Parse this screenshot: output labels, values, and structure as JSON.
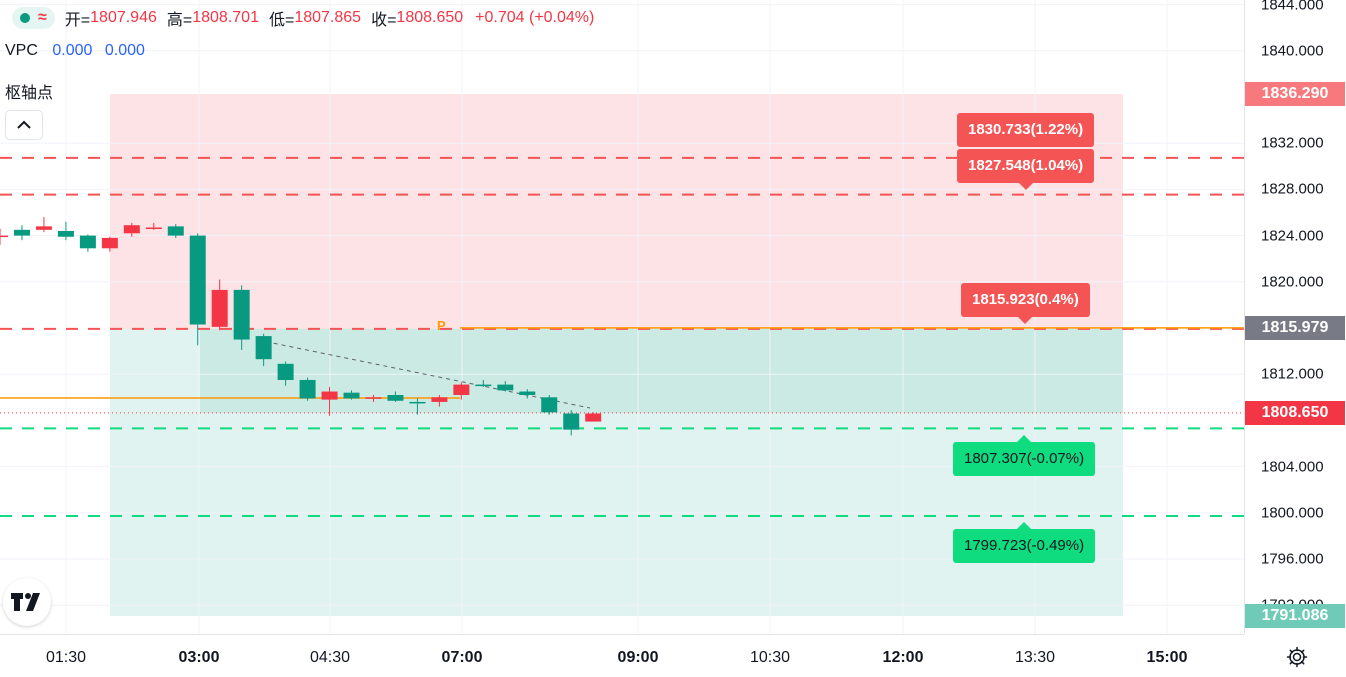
{
  "legend": {
    "open_label": "开=",
    "open_value": "1807.946",
    "high_label": "高=",
    "high_value": "1808.701",
    "low_label": "低=",
    "low_value": "1807.865",
    "close_label": "收=",
    "close_value": "1808.650",
    "change": "+0.704 (+0.04%)",
    "wave_icon": "≈"
  },
  "indicators": {
    "vpc_name": "VPC",
    "vpc_value_1": "0.000",
    "vpc_value_2": "0.000",
    "pivot_name": "枢轴点"
  },
  "price_axis": {
    "ticks": [
      "1844.000",
      "1840.000",
      "1832.000",
      "1828.000",
      "1824.000",
      "1820.000",
      "1812.000",
      "1804.000",
      "1800.000",
      "1796.000",
      "1792.000"
    ],
    "badge_top": {
      "text": "1836.290",
      "color": "#f7797d"
    },
    "badge_pivot": {
      "text": "1815.979",
      "color": "#787b86"
    },
    "badge_last": {
      "text": "1808.650",
      "color": "#f23645"
    },
    "badge_bottom": {
      "text": "1791.086",
      "color": "#6fcab7"
    }
  },
  "time_axis": {
    "ticks": [
      "01:30",
      "03:00",
      "04:30",
      "07:00",
      "09:00",
      "10:30",
      "12:00",
      "13:30",
      "15:00"
    ],
    "bold": [
      "03:00",
      "07:00",
      "09:00",
      "12:00",
      "15:00"
    ]
  },
  "levels": {
    "r2": "1830.733(1.22%)",
    "r1": "1827.548(1.04%)",
    "p": "1815.923(0.4%)",
    "s1": "1807.307(-0.07%)",
    "s2": "1799.723(-0.49%)",
    "pivot_marker": "P"
  },
  "colors": {
    "up": "#089981",
    "down": "#f23645",
    "resistance": "#f55454",
    "support": "#0fdc7e",
    "pivot_line": "#ff9800"
  },
  "chart_data": {
    "type": "candlestick",
    "ylim": [
      1790.5,
      1844.5
    ],
    "resistance_levels": [
      1830.733,
      1827.548
    ],
    "pivot_level": 1815.923,
    "support_levels": [
      1807.307,
      1799.723
    ],
    "last_price": 1808.65,
    "candles": [
      {
        "o": 1824.0,
        "h": 1824.6,
        "l": 1823.2,
        "c": 1824.0
      },
      {
        "o": 1824.5,
        "h": 1824.9,
        "l": 1823.6,
        "c": 1824.0
      },
      {
        "o": 1824.5,
        "h": 1825.6,
        "l": 1824.3,
        "c": 1824.8
      },
      {
        "o": 1824.4,
        "h": 1825.2,
        "l": 1823.6,
        "c": 1823.9
      },
      {
        "o": 1824.0,
        "h": 1824.1,
        "l": 1822.6,
        "c": 1822.9
      },
      {
        "o": 1822.9,
        "h": 1823.9,
        "l": 1822.6,
        "c": 1823.8
      },
      {
        "o": 1824.2,
        "h": 1825.1,
        "l": 1823.9,
        "c": 1824.9
      },
      {
        "o": 1824.6,
        "h": 1825.1,
        "l": 1824.5,
        "c": 1824.7
      },
      {
        "o": 1824.8,
        "h": 1825.0,
        "l": 1823.8,
        "c": 1824.0
      },
      {
        "o": 1824.0,
        "h": 1824.2,
        "l": 1814.5,
        "c": 1816.3
      },
      {
        "o": 1816.1,
        "h": 1820.2,
        "l": 1815.8,
        "c": 1819.3
      },
      {
        "o": 1819.3,
        "h": 1819.7,
        "l": 1814.1,
        "c": 1815.0
      },
      {
        "o": 1815.3,
        "h": 1815.5,
        "l": 1812.7,
        "c": 1813.3
      },
      {
        "o": 1812.9,
        "h": 1813.1,
        "l": 1811.0,
        "c": 1811.5
      },
      {
        "o": 1811.5,
        "h": 1811.7,
        "l": 1809.7,
        "c": 1809.9
      },
      {
        "o": 1809.8,
        "h": 1810.9,
        "l": 1808.4,
        "c": 1810.5
      },
      {
        "o": 1810.4,
        "h": 1810.6,
        "l": 1809.8,
        "c": 1809.9
      },
      {
        "o": 1809.9,
        "h": 1810.2,
        "l": 1809.6,
        "c": 1810.0
      },
      {
        "o": 1810.2,
        "h": 1810.5,
        "l": 1809.6,
        "c": 1809.7
      },
      {
        "o": 1809.6,
        "h": 1809.9,
        "l": 1808.5,
        "c": 1809.5
      },
      {
        "o": 1809.6,
        "h": 1810.2,
        "l": 1809.2,
        "c": 1810.0
      },
      {
        "o": 1810.2,
        "h": 1811.3,
        "l": 1809.8,
        "c": 1811.1
      },
      {
        "o": 1811.1,
        "h": 1811.5,
        "l": 1810.9,
        "c": 1811.0
      },
      {
        "o": 1811.1,
        "h": 1811.4,
        "l": 1810.5,
        "c": 1810.6
      },
      {
        "o": 1810.5,
        "h": 1810.7,
        "l": 1809.9,
        "c": 1810.2
      },
      {
        "o": 1810.0,
        "h": 1810.2,
        "l": 1808.5,
        "c": 1808.7
      },
      {
        "o": 1808.6,
        "h": 1808.9,
        "l": 1806.7,
        "c": 1807.2
      },
      {
        "o": 1807.9,
        "h": 1808.7,
        "l": 1807.9,
        "c": 1808.6
      }
    ]
  }
}
